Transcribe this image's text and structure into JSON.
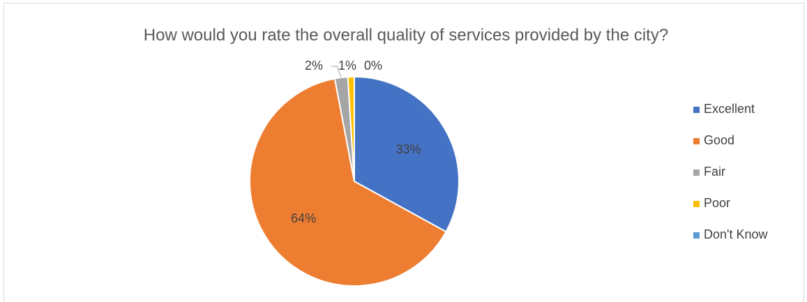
{
  "chart_data": {
    "type": "pie",
    "title": "How would you rate the overall quality of services provided by the city?",
    "categories": [
      "Excellent",
      "Good",
      "Fair",
      "Poor",
      "Don't Know"
    ],
    "values": [
      33,
      64,
      2,
      1,
      0
    ],
    "data_labels": [
      "33%",
      "64%",
      "2%",
      "1%",
      "0%"
    ],
    "colors": [
      "#4472C4",
      "#ED7D31",
      "#A5A5A5",
      "#FFC000",
      "#5B9BD5"
    ],
    "legend_position": "right",
    "start_angle": "12 o'clock",
    "direction": "clockwise"
  }
}
